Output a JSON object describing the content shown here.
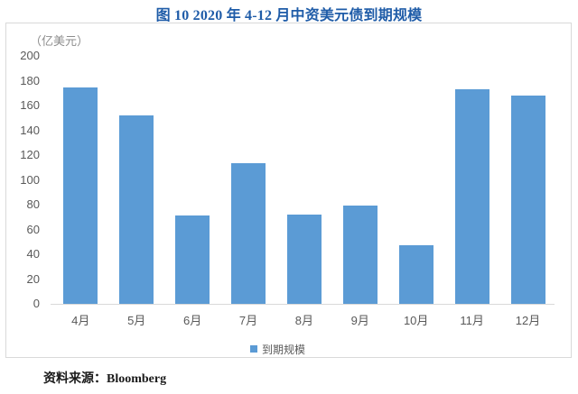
{
  "figure": {
    "title": "图 10 2020 年 4-12 月中资美元债到期规模",
    "unit_label": "（亿美元）",
    "legend_label": "到期规模",
    "source_prefix": "资料来源：",
    "source_name": "Bloomberg"
  },
  "colors": {
    "title_text": "#1F5CA8",
    "bar": "#5B9BD5",
    "axis_text": "#595959",
    "axis_line": "#D9D9D9",
    "box_border": "#D9D9D9",
    "unit_text": "#8C8C8C"
  },
  "chart_data": {
    "type": "bar",
    "title": "图 10 2020 年 4-12 月中资美元债到期规模",
    "categories": [
      "4月",
      "5月",
      "6月",
      "7月",
      "8月",
      "9月",
      "10月",
      "11月",
      "12月"
    ],
    "values": [
      174,
      152,
      71,
      113,
      72,
      79,
      47,
      173,
      168
    ],
    "series": [
      {
        "name": "到期规模",
        "values": [
          174,
          152,
          71,
          113,
          72,
          79,
          47,
          173,
          168
        ]
      }
    ],
    "xlabel": "",
    "ylabel": "（亿美元）",
    "ylim": [
      0,
      200
    ],
    "ytick_step": 20,
    "yticks": [
      0,
      20,
      40,
      60,
      80,
      100,
      120,
      140,
      160,
      180,
      200
    ],
    "grid": false,
    "legend": [
      "到期规模"
    ],
    "legend_position": "bottom",
    "source": "资料来源：Bloomberg"
  }
}
